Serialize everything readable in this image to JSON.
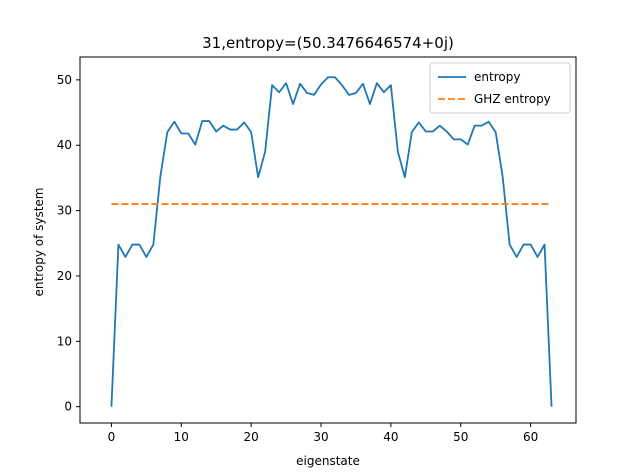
{
  "chart_data": {
    "type": "line",
    "title": "31,entropy=(50.3476646574+0j)",
    "xlabel": "eigenstate",
    "ylabel": "entropy of system",
    "xlim": [
      -4.5,
      66.5
    ],
    "ylim": [
      -2.5,
      53.5
    ],
    "xticks": [
      0,
      10,
      20,
      30,
      40,
      50,
      60
    ],
    "yticks": [
      0,
      10,
      20,
      30,
      40,
      50
    ],
    "grid": false,
    "legend_position": "top-right",
    "series": [
      {
        "name": "entropy",
        "color": "#1f77b4",
        "style": "solid",
        "x": [
          0,
          1,
          2,
          3,
          4,
          5,
          6,
          7,
          8,
          9,
          10,
          11,
          12,
          13,
          14,
          15,
          16,
          17,
          18,
          19,
          20,
          21,
          22,
          23,
          24,
          25,
          26,
          27,
          28,
          29,
          30,
          31,
          32,
          33,
          34,
          35,
          36,
          37,
          38,
          39,
          40,
          41,
          42,
          43,
          44,
          45,
          46,
          47,
          48,
          49,
          50,
          51,
          52,
          53,
          54,
          55,
          56,
          57,
          58,
          59,
          60,
          61,
          62,
          63
        ],
        "values": [
          0,
          24.8,
          22.9,
          24.8,
          24.8,
          22.9,
          24.8,
          35.2,
          42.0,
          43.6,
          41.8,
          41.8,
          40.1,
          43.7,
          43.7,
          42.1,
          43.0,
          42.4,
          42.4,
          43.5,
          42.0,
          35.1,
          39.0,
          49.2,
          48.1,
          49.5,
          46.3,
          49.4,
          48.0,
          47.7,
          49.3,
          50.4,
          50.4,
          49.2,
          47.7,
          48.0,
          49.4,
          46.3,
          49.5,
          48.1,
          49.2,
          39.0,
          35.1,
          42.0,
          43.5,
          42.1,
          42.1,
          43.0,
          42.1,
          40.9,
          40.9,
          40.1,
          43.0,
          43.0,
          43.6,
          42.0,
          35.2,
          24.8,
          22.9,
          24.8,
          24.8,
          22.9,
          24.8,
          0
        ]
      },
      {
        "name": "GHZ entropy",
        "color": "#ff7f0e",
        "style": "dashed",
        "x": [
          0,
          63
        ],
        "values": [
          31.0,
          31.0
        ]
      }
    ]
  }
}
